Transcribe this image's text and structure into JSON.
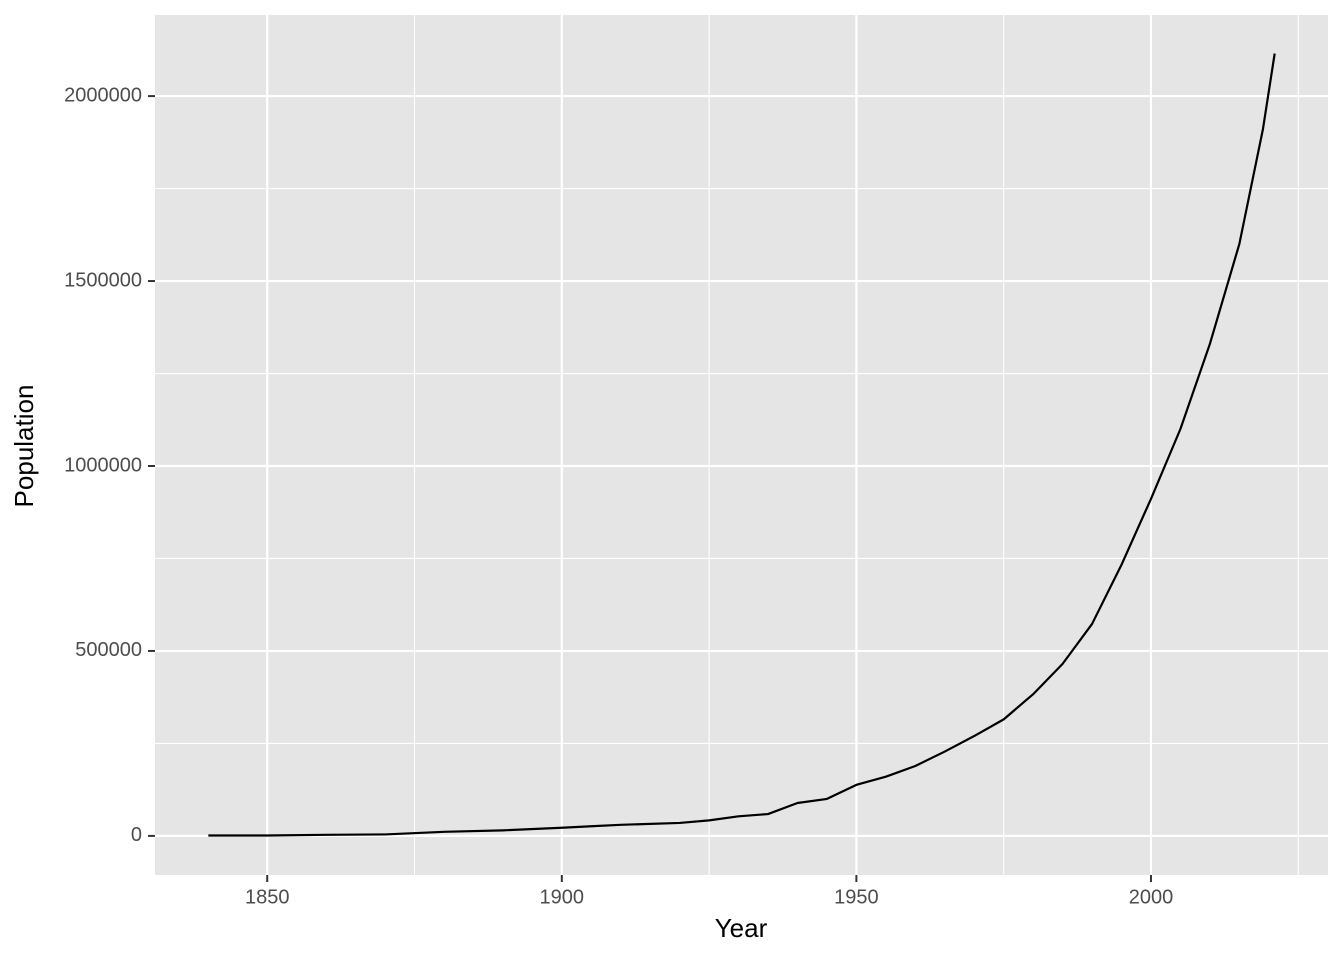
{
  "chart_data": {
    "type": "line",
    "x_label": "Year",
    "y_label": "Population",
    "series": [
      {
        "name": "Population",
        "color": "#000000",
        "x": [
          1840,
          1850,
          1860,
          1870,
          1880,
          1890,
          1900,
          1905,
          1910,
          1920,
          1925,
          1930,
          1935,
          1940,
          1945,
          1950,
          1955,
          1960,
          1965,
          1970,
          1975,
          1980,
          1985,
          1990,
          1995,
          2000,
          2005,
          2010,
          2015,
          2019,
          2021
        ],
        "values": [
          1000,
          1000,
          3000,
          4000,
          11000,
          15000,
          22000,
          26000,
          30000,
          35000,
          42000,
          53000,
          59000,
          89000,
          100000,
          138000,
          160000,
          189000,
          228000,
          270000,
          315000,
          383000,
          465000,
          573000,
          733000,
          911000,
          1100000,
          1330000,
          1600000,
          1910000,
          2115000
        ]
      }
    ],
    "xlim": [
      1830.95,
      2030.05
    ],
    "xticks": [
      1850,
      1900,
      1950,
      2000
    ],
    "ylim": [
      -105700,
      2219200
    ],
    "yticks": [
      0,
      500000,
      1000000,
      1500000,
      2000000
    ],
    "grid": true,
    "background": "#e5e5e5"
  }
}
